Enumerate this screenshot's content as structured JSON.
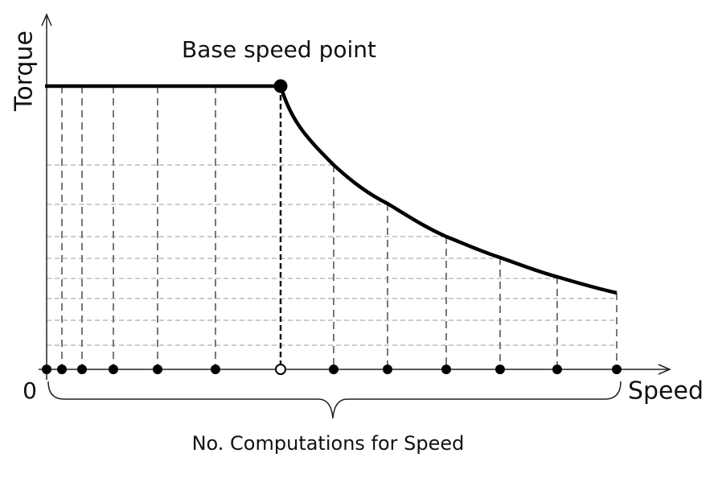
{
  "labels": {
    "y_axis": "Torque",
    "x_axis": "Speed",
    "origin": "0",
    "annotation": "Base speed point",
    "brace": "No. Computations for Speed"
  }
}
